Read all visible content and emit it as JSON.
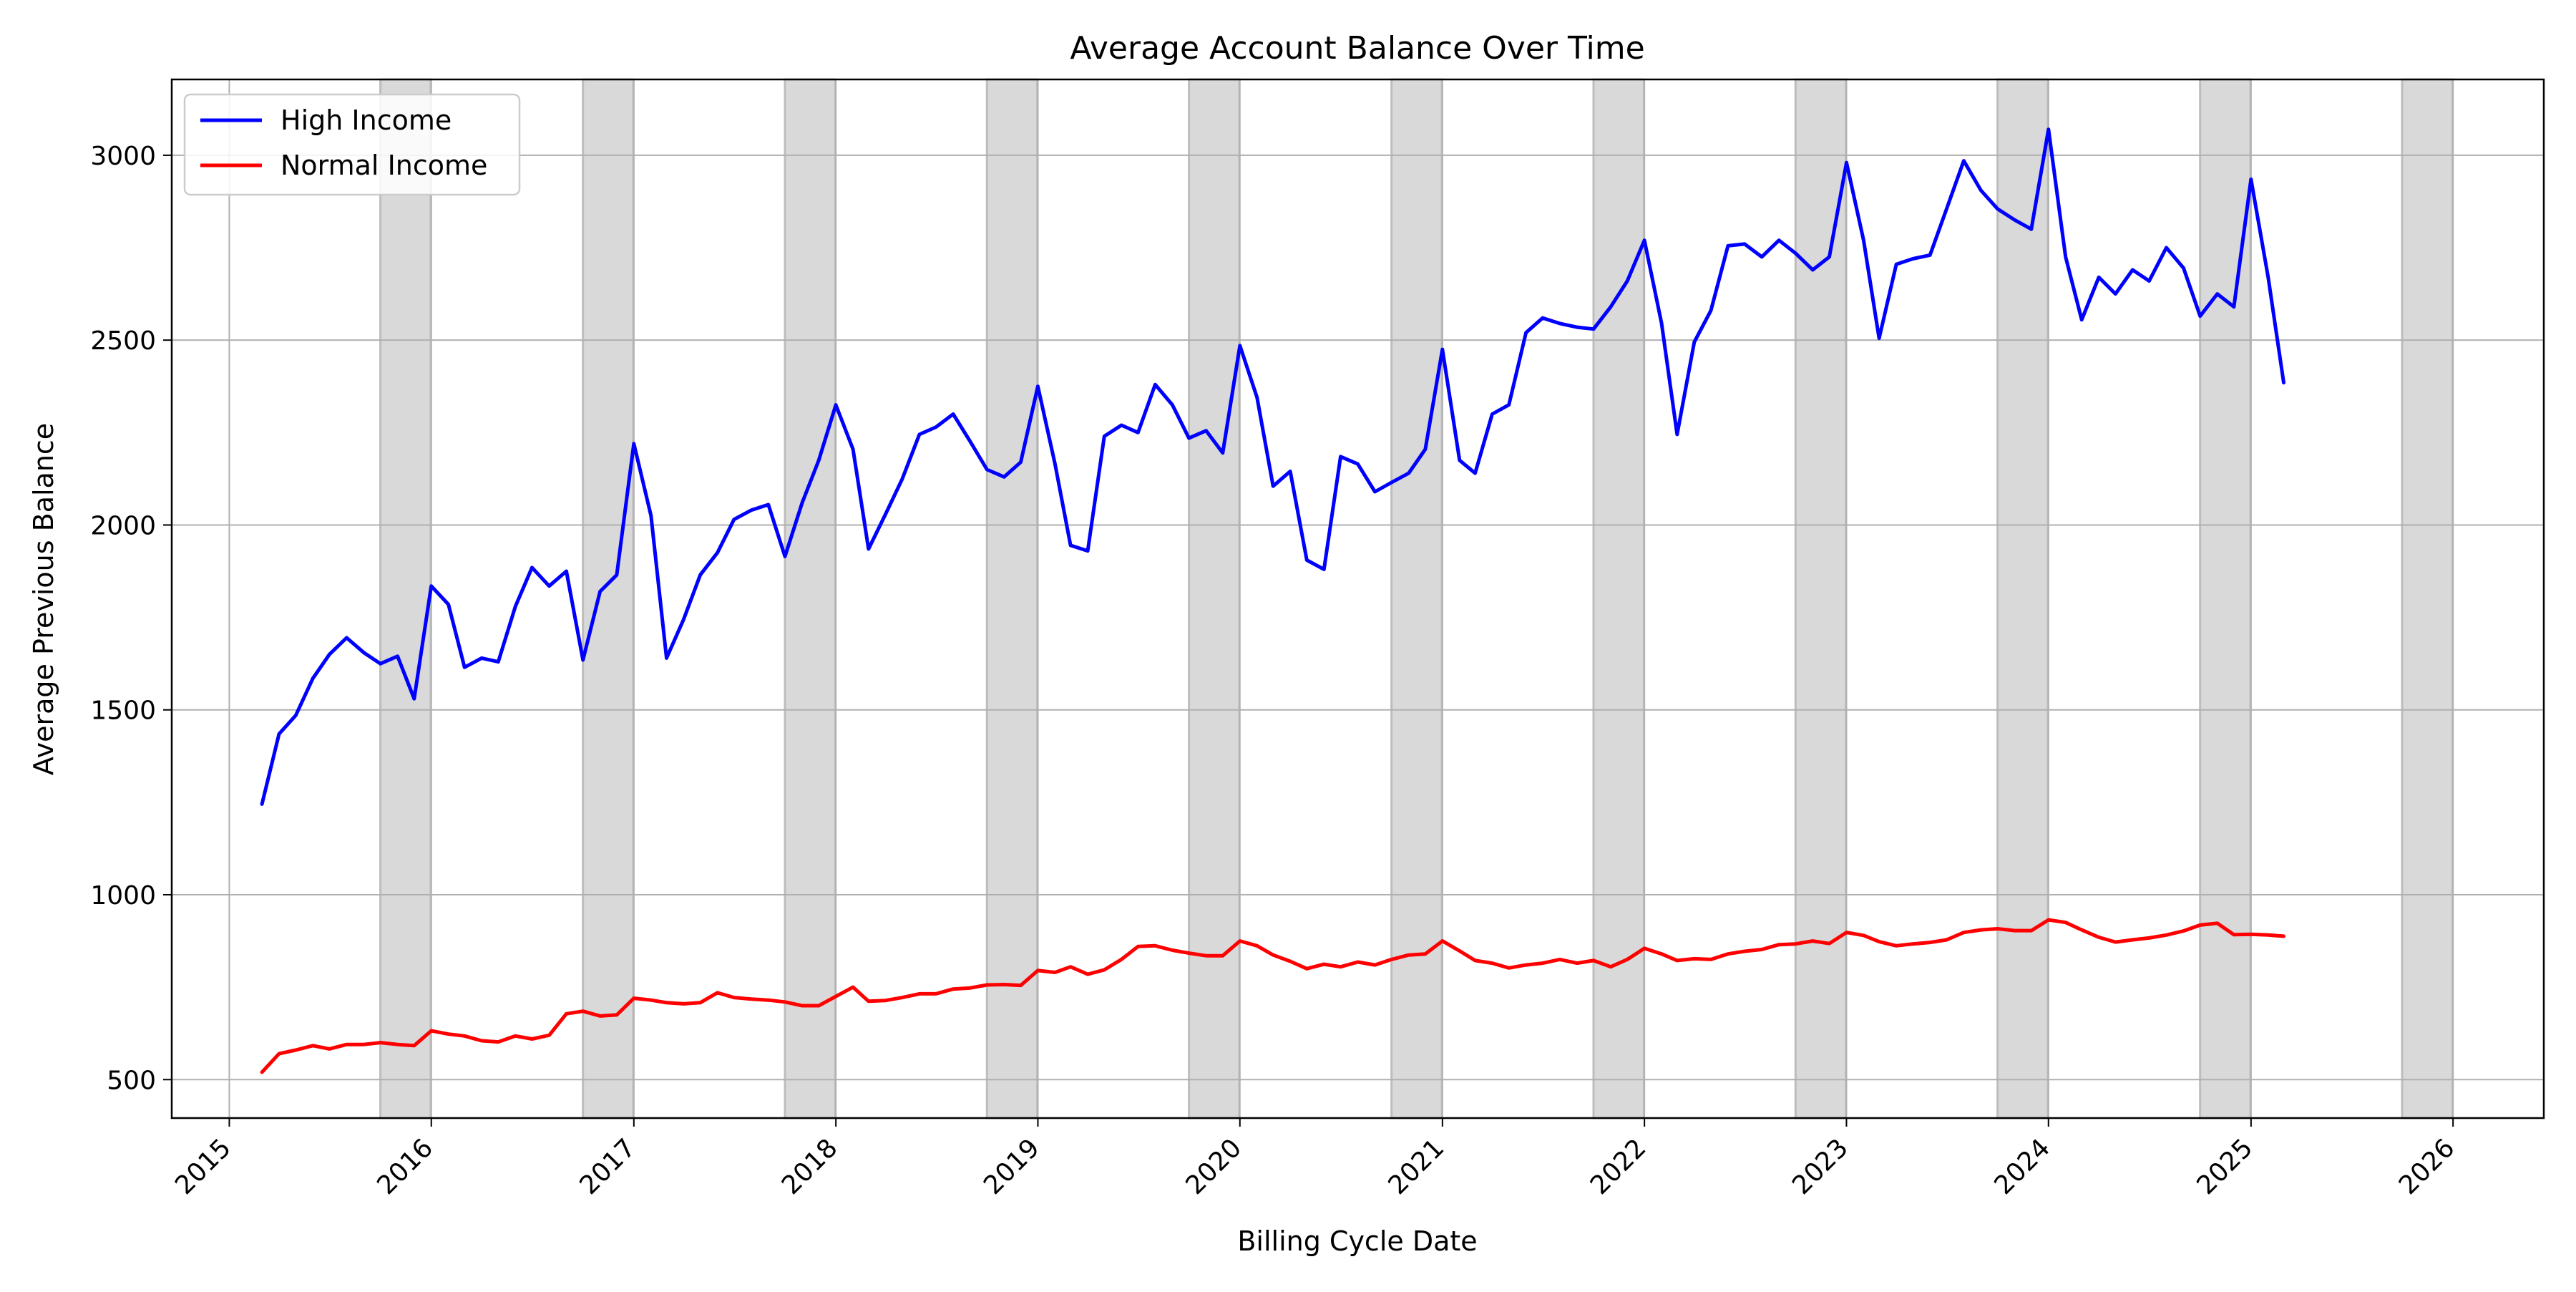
{
  "chart_data": {
    "type": "line",
    "title": "Average Account Balance Over Time",
    "xlabel": "Billing Cycle Date",
    "ylabel": "Average Previous Balance",
    "xlim": [
      "2014-09-19",
      "2026-06-14"
    ],
    "ylim": [
      396,
      3205
    ],
    "x_tick_labels": [
      "2015",
      "2016",
      "2017",
      "2018",
      "2019",
      "2020",
      "2021",
      "2022",
      "2023",
      "2024",
      "2025",
      "2026"
    ],
    "y_tick_labels": [
      "500",
      "1000",
      "1500",
      "2000",
      "2500",
      "3000"
    ],
    "grid": true,
    "legend_position": "top-left",
    "shaded_periods": [
      [
        "2015-10-01",
        "2015-12-31"
      ],
      [
        "2016-10-01",
        "2016-12-31"
      ],
      [
        "2017-10-01",
        "2017-12-31"
      ],
      [
        "2018-10-01",
        "2018-12-31"
      ],
      [
        "2019-10-01",
        "2019-12-31"
      ],
      [
        "2020-10-01",
        "2020-12-31"
      ],
      [
        "2021-10-01",
        "2021-12-31"
      ],
      [
        "2022-10-01",
        "2022-12-31"
      ],
      [
        "2023-10-01",
        "2023-12-31"
      ],
      [
        "2024-10-01",
        "2024-12-31"
      ],
      [
        "2025-10-01",
        "2025-12-31"
      ]
    ],
    "shade_color": "#d9d9d9",
    "x": [
      "2015-03",
      "2015-04",
      "2015-05",
      "2015-06",
      "2015-07",
      "2015-08",
      "2015-09",
      "2015-10",
      "2015-11",
      "2015-12",
      "2016-01",
      "2016-02",
      "2016-03",
      "2016-04",
      "2016-05",
      "2016-06",
      "2016-07",
      "2016-08",
      "2016-09",
      "2016-10",
      "2016-11",
      "2016-12",
      "2017-01",
      "2017-02",
      "2017-03",
      "2017-04",
      "2017-05",
      "2017-06",
      "2017-07",
      "2017-08",
      "2017-09",
      "2017-10",
      "2017-11",
      "2017-12",
      "2018-01",
      "2018-02",
      "2018-03",
      "2018-04",
      "2018-05",
      "2018-06",
      "2018-07",
      "2018-08",
      "2018-09",
      "2018-10",
      "2018-11",
      "2018-12",
      "2019-01",
      "2019-02",
      "2019-03",
      "2019-04",
      "2019-05",
      "2019-06",
      "2019-07",
      "2019-08",
      "2019-09",
      "2019-10",
      "2019-11",
      "2019-12",
      "2020-01",
      "2020-02",
      "2020-03",
      "2020-04",
      "2020-05",
      "2020-06",
      "2020-07",
      "2020-08",
      "2020-09",
      "2020-10",
      "2020-11",
      "2020-12",
      "2021-01",
      "2021-02",
      "2021-03",
      "2021-04",
      "2021-05",
      "2021-06",
      "2021-07",
      "2021-08",
      "2021-09",
      "2021-10",
      "2021-11",
      "2021-12",
      "2022-01",
      "2022-02",
      "2022-03",
      "2022-04",
      "2022-05",
      "2022-06",
      "2022-07",
      "2022-08",
      "2022-09",
      "2022-10",
      "2022-11",
      "2022-12",
      "2023-01",
      "2023-02",
      "2023-03",
      "2023-04",
      "2023-05",
      "2023-06",
      "2023-07",
      "2023-08",
      "2023-09",
      "2023-10",
      "2023-11",
      "2023-12",
      "2024-01",
      "2024-02",
      "2024-03",
      "2024-04",
      "2024-05",
      "2024-06",
      "2024-07",
      "2024-08",
      "2024-09",
      "2024-10",
      "2024-11",
      "2024-12",
      "2025-01",
      "2025-02",
      "2025-03"
    ],
    "series": [
      {
        "name": "High Income",
        "color": "#0000ff",
        "values": [
          1245,
          1435,
          1485,
          1585,
          1650,
          1695,
          1655,
          1625,
          1645,
          1530,
          1835,
          1785,
          1615,
          1640,
          1630,
          1780,
          1885,
          1835,
          1875,
          1635,
          1820,
          1865,
          2220,
          2025,
          1640,
          1745,
          1865,
          1925,
          2015,
          2040,
          2055,
          1915,
          2060,
          2175,
          2325,
          2205,
          1935,
          2030,
          2125,
          2245,
          2265,
          2300,
          2225,
          2150,
          2130,
          2170,
          2375,
          2165,
          1945,
          1930,
          2240,
          2270,
          2250,
          2380,
          2325,
          2235,
          2255,
          2195,
          2485,
          2345,
          2105,
          2145,
          1905,
          1880,
          2185,
          2165,
          2090,
          2115,
          2140,
          2205,
          2475,
          2175,
          2140,
          2300,
          2325,
          2520,
          2560,
          2545,
          2535,
          2530,
          2590,
          2660,
          2770,
          2545,
          2245,
          2495,
          2580,
          2755,
          2760,
          2725,
          2770,
          2735,
          2690,
          2725,
          2980,
          2770,
          2505,
          2705,
          2720,
          2730,
          2855,
          2985,
          2905,
          2855,
          2825,
          2800,
          3070,
          2725,
          2555,
          2670,
          2625,
          2690,
          2660,
          2750,
          2695,
          2565,
          2625,
          2590,
          2935,
          2670,
          2385
        ]
      },
      {
        "name": "Normal Income",
        "color": "#ff0000",
        "values": [
          520,
          570,
          580,
          592,
          583,
          595,
          595,
          600,
          595,
          592,
          632,
          623,
          618,
          605,
          602,
          618,
          610,
          620,
          678,
          685,
          672,
          675,
          720,
          715,
          708,
          705,
          708,
          735,
          722,
          718,
          715,
          710,
          700,
          700,
          725,
          750,
          712,
          714,
          722,
          732,
          732,
          745,
          748,
          756,
          757,
          755,
          795,
          790,
          805,
          785,
          797,
          825,
          860,
          862,
          850,
          842,
          835,
          835,
          875,
          862,
          837,
          820,
          800,
          812,
          805,
          818,
          810,
          825,
          837,
          840,
          875,
          848,
          822,
          815,
          802,
          810,
          815,
          825,
          815,
          822,
          805,
          825,
          855,
          840,
          822,
          827,
          825,
          840,
          847,
          852,
          865,
          867,
          875,
          868,
          898,
          890,
          873,
          862,
          867,
          871,
          878,
          898,
          905,
          908,
          903,
          903,
          932,
          925,
          905,
          885,
          872,
          878,
          883,
          891,
          902,
          918,
          923,
          892,
          893,
          891,
          888
        ]
      }
    ]
  }
}
